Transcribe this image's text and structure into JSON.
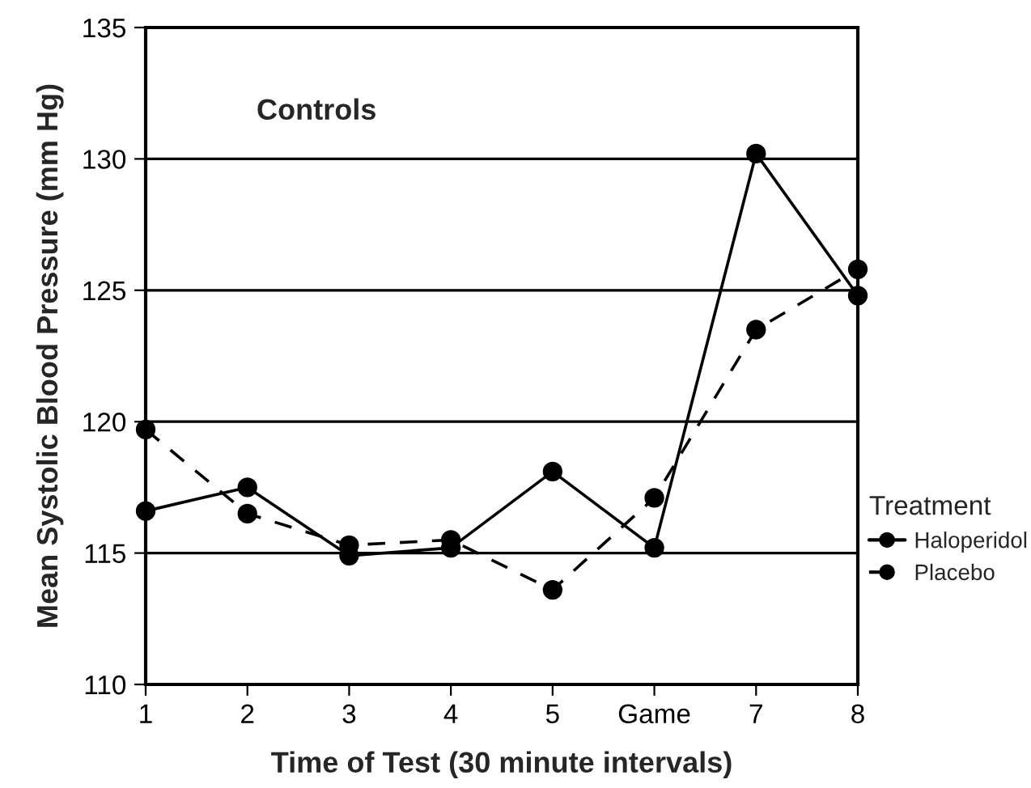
{
  "chart_data": {
    "type": "line",
    "xlabel": "Time of Test (30 minute intervals)",
    "ylabel": "Mean Systolic Blood Pressure (mm Hg)",
    "legend_title": "Treatment",
    "annotations": [
      "Controls"
    ],
    "categories": [
      "1",
      "2",
      "3",
      "4",
      "5",
      "Game",
      "7",
      "8"
    ],
    "series": [
      {
        "name": "Haloperidol",
        "color": "#000000",
        "line_style": "solid",
        "values": [
          116.6,
          117.5,
          114.9,
          115.2,
          118.1,
          115.2,
          130.2,
          124.8
        ]
      },
      {
        "name": "Placebo",
        "color": "#000000",
        "line_style": "dashed",
        "values": [
          119.7,
          116.5,
          115.3,
          115.5,
          113.6,
          117.1,
          123.5,
          125.8
        ]
      }
    ],
    "ylim": [
      110,
      135
    ],
    "yticks": [
      110,
      115,
      120,
      125,
      130,
      135
    ],
    "grid": "y",
    "legend": "right",
    "marker": "circle"
  }
}
